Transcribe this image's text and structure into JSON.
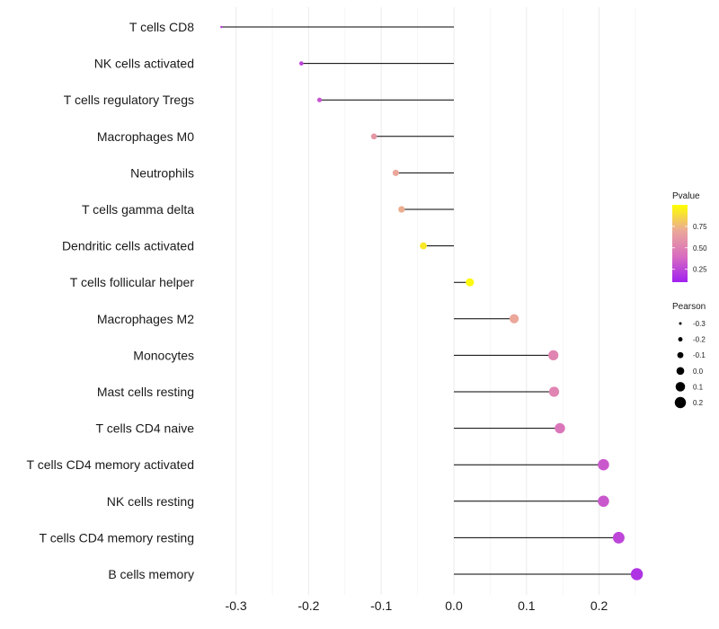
{
  "chart_data": {
    "type": "lollipop",
    "title": "",
    "xlabel": "",
    "ylabel": "",
    "xlim": [
      -0.33,
      0.26
    ],
    "x_ticks": [
      "-0.3",
      "-0.2",
      "-0.1",
      "0.0",
      "0.1",
      "0.2"
    ],
    "x_tick_values": [
      -0.3,
      -0.2,
      -0.1,
      0.0,
      0.1,
      0.2
    ],
    "grid": true,
    "categories": [
      "T cells CD8",
      "NK cells activated",
      "T cells regulatory  Tregs",
      "Macrophages M0",
      "Neutrophils",
      "T cells gamma delta",
      "Dendritic cells activated",
      "T cells follicular helper",
      "Macrophages M2",
      "Monocytes",
      "Mast cells resting",
      "T cells CD4 naive",
      "T cells CD4 memory activated",
      "NK cells resting",
      "T cells CD4 memory resting",
      "B cells memory"
    ],
    "pearson": [
      -0.32,
      -0.21,
      -0.185,
      -0.11,
      -0.08,
      -0.072,
      -0.042,
      0.022,
      0.083,
      0.137,
      0.138,
      0.146,
      0.206,
      0.206,
      0.227,
      0.252
    ],
    "pvalue": [
      0.22,
      0.24,
      0.3,
      0.62,
      0.7,
      0.72,
      0.92,
      0.98,
      0.7,
      0.52,
      0.52,
      0.45,
      0.32,
      0.32,
      0.25,
      0.18
    ],
    "legend_color": {
      "title": "Pvalue",
      "ticks": [
        "0.75",
        "0.50",
        "0.25"
      ],
      "tick_values": [
        0.75,
        0.5,
        0.25
      ],
      "range": [
        0.1,
        1.0
      ],
      "colors": [
        "#a020f0",
        "#d96cc0",
        "#eaa79a",
        "#ffff00"
      ],
      "position": "right"
    },
    "legend_size": {
      "title": "Pearson",
      "labels": [
        "-0.3",
        "-0.2",
        "-0.1",
        "0.0",
        "0.1",
        "0.2"
      ],
      "values": [
        -0.3,
        -0.2,
        -0.1,
        0.0,
        0.1,
        0.2
      ],
      "position": "right"
    }
  }
}
